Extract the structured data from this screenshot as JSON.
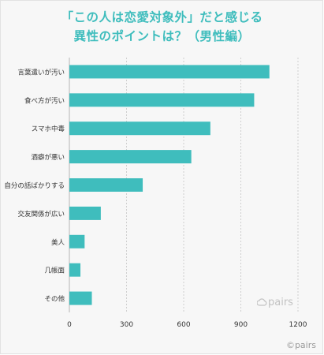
{
  "header": {
    "title_line1": "「この人は恋愛対象外」だと感じる",
    "title_line2": "異性のポイントは？（男性編）"
  },
  "colors": {
    "bar": "#3fbdbd",
    "title": "#3fbdbd",
    "grid": "#cfcfcf"
  },
  "chart_data": {
    "type": "bar",
    "orientation": "horizontal",
    "categories": [
      "言葉遣いが汚い",
      "食べ方が汚い",
      "スマホ中毒",
      "酒癖が悪い",
      "自分の話ばかりする",
      "交友関係が広い",
      "美人",
      "几帳面",
      "その他"
    ],
    "values": [
      1050,
      970,
      740,
      640,
      385,
      165,
      80,
      58,
      118
    ],
    "xlim": [
      0,
      1200
    ],
    "xticks": [
      0,
      300,
      600,
      900,
      1200
    ],
    "grid": "vertical dashed",
    "title": "「この人は恋愛対象外」だと感じる異性のポイントは？（男性編）"
  },
  "watermark": {
    "brand": "pairs",
    "icon": "pairs-cloud-logo"
  },
  "credit": "©pairs"
}
